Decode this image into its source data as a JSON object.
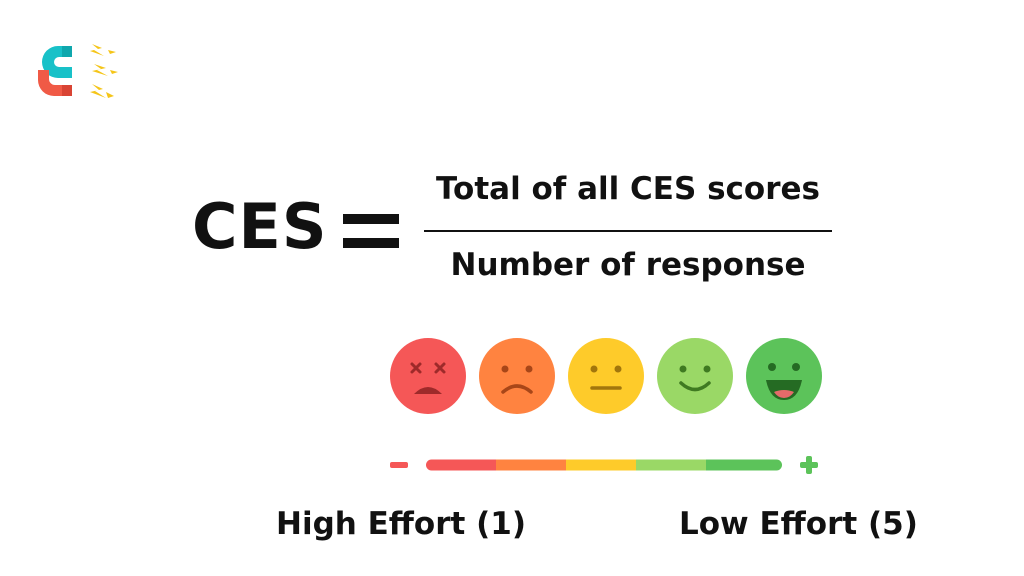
{
  "formula": {
    "lhs": "CES",
    "numerator": "Total of all CES scores",
    "denominator": "Number of response"
  },
  "scale": {
    "faces": [
      {
        "icon": "dead-face-icon",
        "color": "#f55757"
      },
      {
        "icon": "sad-face-icon",
        "color": "#ff8340"
      },
      {
        "icon": "neutral-face-icon",
        "color": "#fecb2a"
      },
      {
        "icon": "smile-face-icon",
        "color": "#9ad866"
      },
      {
        "icon": "big-smile-face-icon",
        "color": "#5cc35a"
      }
    ],
    "bar_colors": [
      "#f55757",
      "#ff8340",
      "#fecb2a",
      "#9ad866",
      "#5cc35a"
    ],
    "minus_icon": "minus-icon",
    "plus_icon": "plus-icon",
    "left_label": "High Effort (1)",
    "right_label": "Low Effort (5)"
  },
  "logo": {
    "icon": "magnet-logo-icon",
    "colors": [
      "#18c1c8",
      "#f05a46",
      "#f5c518"
    ]
  }
}
